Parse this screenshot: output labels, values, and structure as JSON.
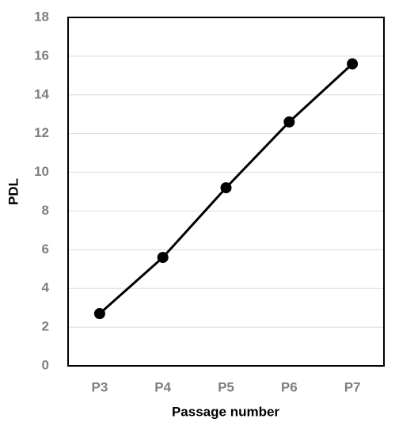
{
  "chart_data": {
    "type": "line",
    "x_label": "Passage number",
    "y_label": "PDL",
    "categories": [
      "P3",
      "P4",
      "P5",
      "P6",
      "P7"
    ],
    "values": [
      2.7,
      5.6,
      9.2,
      12.6,
      15.6
    ],
    "color": "#000000",
    "ylim": [
      0,
      18
    ],
    "yticks": [
      0,
      2,
      4,
      6,
      8,
      10,
      12,
      14,
      16,
      18
    ],
    "grid": true
  }
}
